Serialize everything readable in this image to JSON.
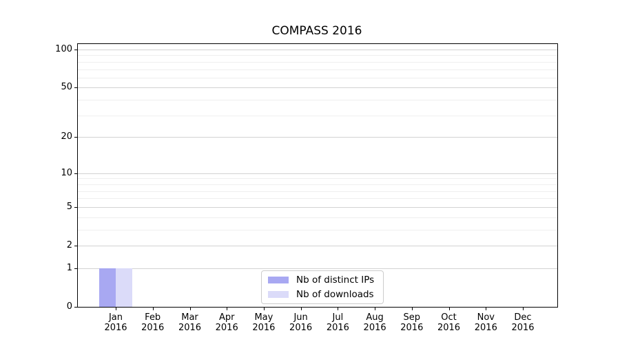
{
  "chart_data": {
    "type": "bar",
    "title": "COMPASS 2016",
    "categories": [
      "Jan",
      "Feb",
      "Mar",
      "Apr",
      "May",
      "Jun",
      "Jul",
      "Aug",
      "Sep",
      "Oct",
      "Nov",
      "Dec"
    ],
    "category_year": "2016",
    "series": [
      {
        "name": "Nb of distinct IPs",
        "color": "#a8a8f2",
        "values": [
          1,
          0,
          0,
          0,
          0,
          0,
          0,
          0,
          0,
          0,
          0,
          0
        ]
      },
      {
        "name": "Nb of downloads",
        "color": "#dbdbf9",
        "values": [
          1,
          0,
          0,
          0,
          0,
          0,
          0,
          0,
          0,
          0,
          0,
          0
        ]
      }
    ],
    "yscale": "log1p",
    "ylim": [
      0,
      100
    ],
    "yticks_major": [
      0,
      1,
      2,
      5,
      10,
      20,
      50,
      100
    ],
    "yticks_minor": [
      3,
      4,
      6,
      7,
      8,
      9,
      30,
      40,
      60,
      70,
      80,
      90
    ],
    "grid": true,
    "legend_position": "inside lower-center"
  },
  "colors": {
    "axis": "#000000",
    "grid_major": "#d2d2d2",
    "grid_minor": "#efefef",
    "background": "#ffffff",
    "legend_border": "#cccccc",
    "bar_distinct_ips": "#a8a8f2",
    "bar_downloads": "#dbdbf9"
  }
}
